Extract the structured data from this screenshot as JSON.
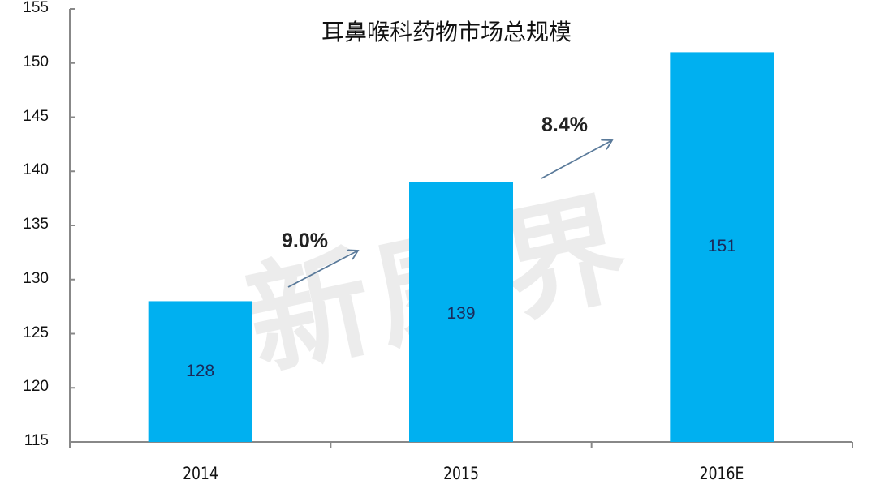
{
  "chart_data": {
    "type": "bar",
    "title": "耳鼻喉科药物市场总规模",
    "categories": [
      "2014",
      "2015",
      "2016E"
    ],
    "values": [
      128,
      139,
      151
    ],
    "series": [
      {
        "name": "市场总规模",
        "values": [
          128,
          139,
          151
        ]
      }
    ],
    "data_labels": [
      "128",
      "139",
      "151"
    ],
    "annotations": [
      {
        "text": "9.0%",
        "from": "2014",
        "to": "2015",
        "type": "growth-arrow"
      },
      {
        "text": "8.4%",
        "from": "2015",
        "to": "2016E",
        "type": "growth-arrow"
      }
    ],
    "xlabel": "",
    "ylabel": "",
    "ylim": [
      115,
      155
    ],
    "yticks": [
      115,
      120,
      125,
      130,
      135,
      140,
      145,
      150,
      155
    ],
    "grid": false,
    "legend": null,
    "bar_color": "#00b0f0",
    "label_color": "#1a2a5a",
    "axis_color": "#888888",
    "arrow_color": "#5a7a9a"
  },
  "watermark": "新康界"
}
